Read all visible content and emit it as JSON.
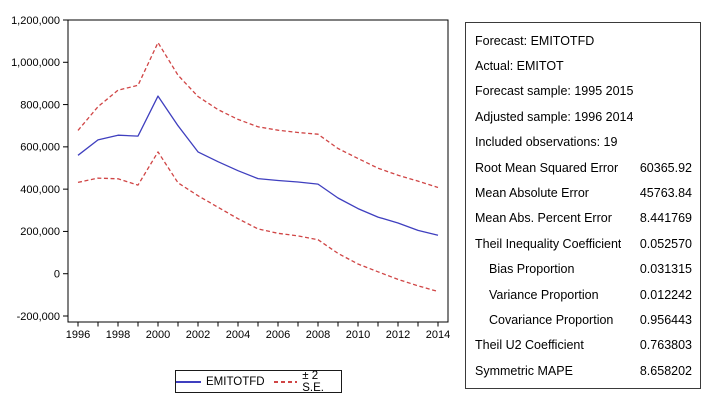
{
  "chart_data": {
    "type": "line",
    "title": "",
    "xlabel": "",
    "ylabel": "",
    "grid": false,
    "legend_position": "bottom",
    "x": [
      1996,
      1997,
      1998,
      1999,
      2000,
      2001,
      2002,
      2003,
      2004,
      2005,
      2006,
      2007,
      2008,
      2009,
      2010,
      2011,
      2012,
      2013,
      2014
    ],
    "series": [
      {
        "name": "EMITOTFD",
        "style": "solid",
        "color": "#3f3fbf",
        "values": [
          560000,
          633000,
          655000,
          651000,
          840000,
          700000,
          576000,
          530000,
          487000,
          450000,
          441000,
          434000,
          424000,
          358000,
          308000,
          268000,
          240000,
          205000,
          182000
        ]
      },
      {
        "name": "plus-2-se",
        "style": "dashed",
        "color": "#d04545",
        "values": [
          678000,
          790000,
          868000,
          891000,
          1093000,
          939000,
          838000,
          776000,
          730000,
          695000,
          679000,
          668000,
          660000,
          592000,
          545000,
          499000,
          466000,
          438000,
          408000
        ]
      },
      {
        "name": "minus-2-se",
        "style": "dashed",
        "color": "#d04545",
        "values": [
          432000,
          452000,
          449000,
          419000,
          576000,
          430000,
          369000,
          314000,
          260000,
          212000,
          191000,
          179000,
          161000,
          96000,
          46000,
          9000,
          -27000,
          -57000,
          -84000
        ]
      }
    ],
    "ylim": [
      -200000,
      1200000
    ],
    "yticks": [
      {
        "v": 1200000,
        "label": "1,200,000"
      },
      {
        "v": 1000000,
        "label": "1,000,000"
      },
      {
        "v": 800000,
        "label": "800,000"
      },
      {
        "v": 600000,
        "label": "600,000"
      },
      {
        "v": 400000,
        "label": "400,000"
      },
      {
        "v": 200000,
        "label": "200,000"
      },
      {
        "v": 0,
        "label": "0"
      },
      {
        "v": -200000,
        "label": "-200,000"
      }
    ],
    "xticks": [
      {
        "v": 1996,
        "label": "1996"
      },
      {
        "v": 1998,
        "label": "1998"
      },
      {
        "v": 2000,
        "label": "2000"
      },
      {
        "v": 2002,
        "label": "2002"
      },
      {
        "v": 2004,
        "label": "2004"
      },
      {
        "v": 2006,
        "label": "2006"
      },
      {
        "v": 2008,
        "label": "2008"
      },
      {
        "v": 2010,
        "label": "2010"
      },
      {
        "v": 2012,
        "label": "2012"
      },
      {
        "v": 2014,
        "label": "2014"
      }
    ]
  },
  "colors": {
    "forecast_line": "#3f3fbf",
    "se_band_line": "#d04545",
    "frame": "#000000"
  },
  "legend": {
    "forecast_label": "EMITOTFD",
    "se_label": "± 2 S.E."
  },
  "stats": {
    "rows": [
      {
        "label": "Forecast: EMITOTFD",
        "value": ""
      },
      {
        "label": "Actual: EMITOT",
        "value": ""
      },
      {
        "label": "Forecast sample: 1995 2015",
        "value": ""
      },
      {
        "label": "Adjusted sample: 1996 2014",
        "value": ""
      },
      {
        "label": "Included observations: 19",
        "value": ""
      },
      {
        "label": "Root Mean Squared Error",
        "value": "60365.92"
      },
      {
        "label": "Mean Absolute Error",
        "value": "45763.84"
      },
      {
        "label": "Mean Abs. Percent Error",
        "value": "8.441769"
      },
      {
        "label": "Theil Inequality Coefficient",
        "value": "0.052570"
      },
      {
        "label": "Bias Proportion",
        "value": "0.031315"
      },
      {
        "label": "Variance Proportion",
        "value": "0.012242"
      },
      {
        "label": "Covariance Proportion",
        "value": "0.956443"
      },
      {
        "label": "Theil U2 Coefficient",
        "value": "0.763803"
      },
      {
        "label": "Symmetric MAPE",
        "value": "8.658202"
      }
    ]
  }
}
